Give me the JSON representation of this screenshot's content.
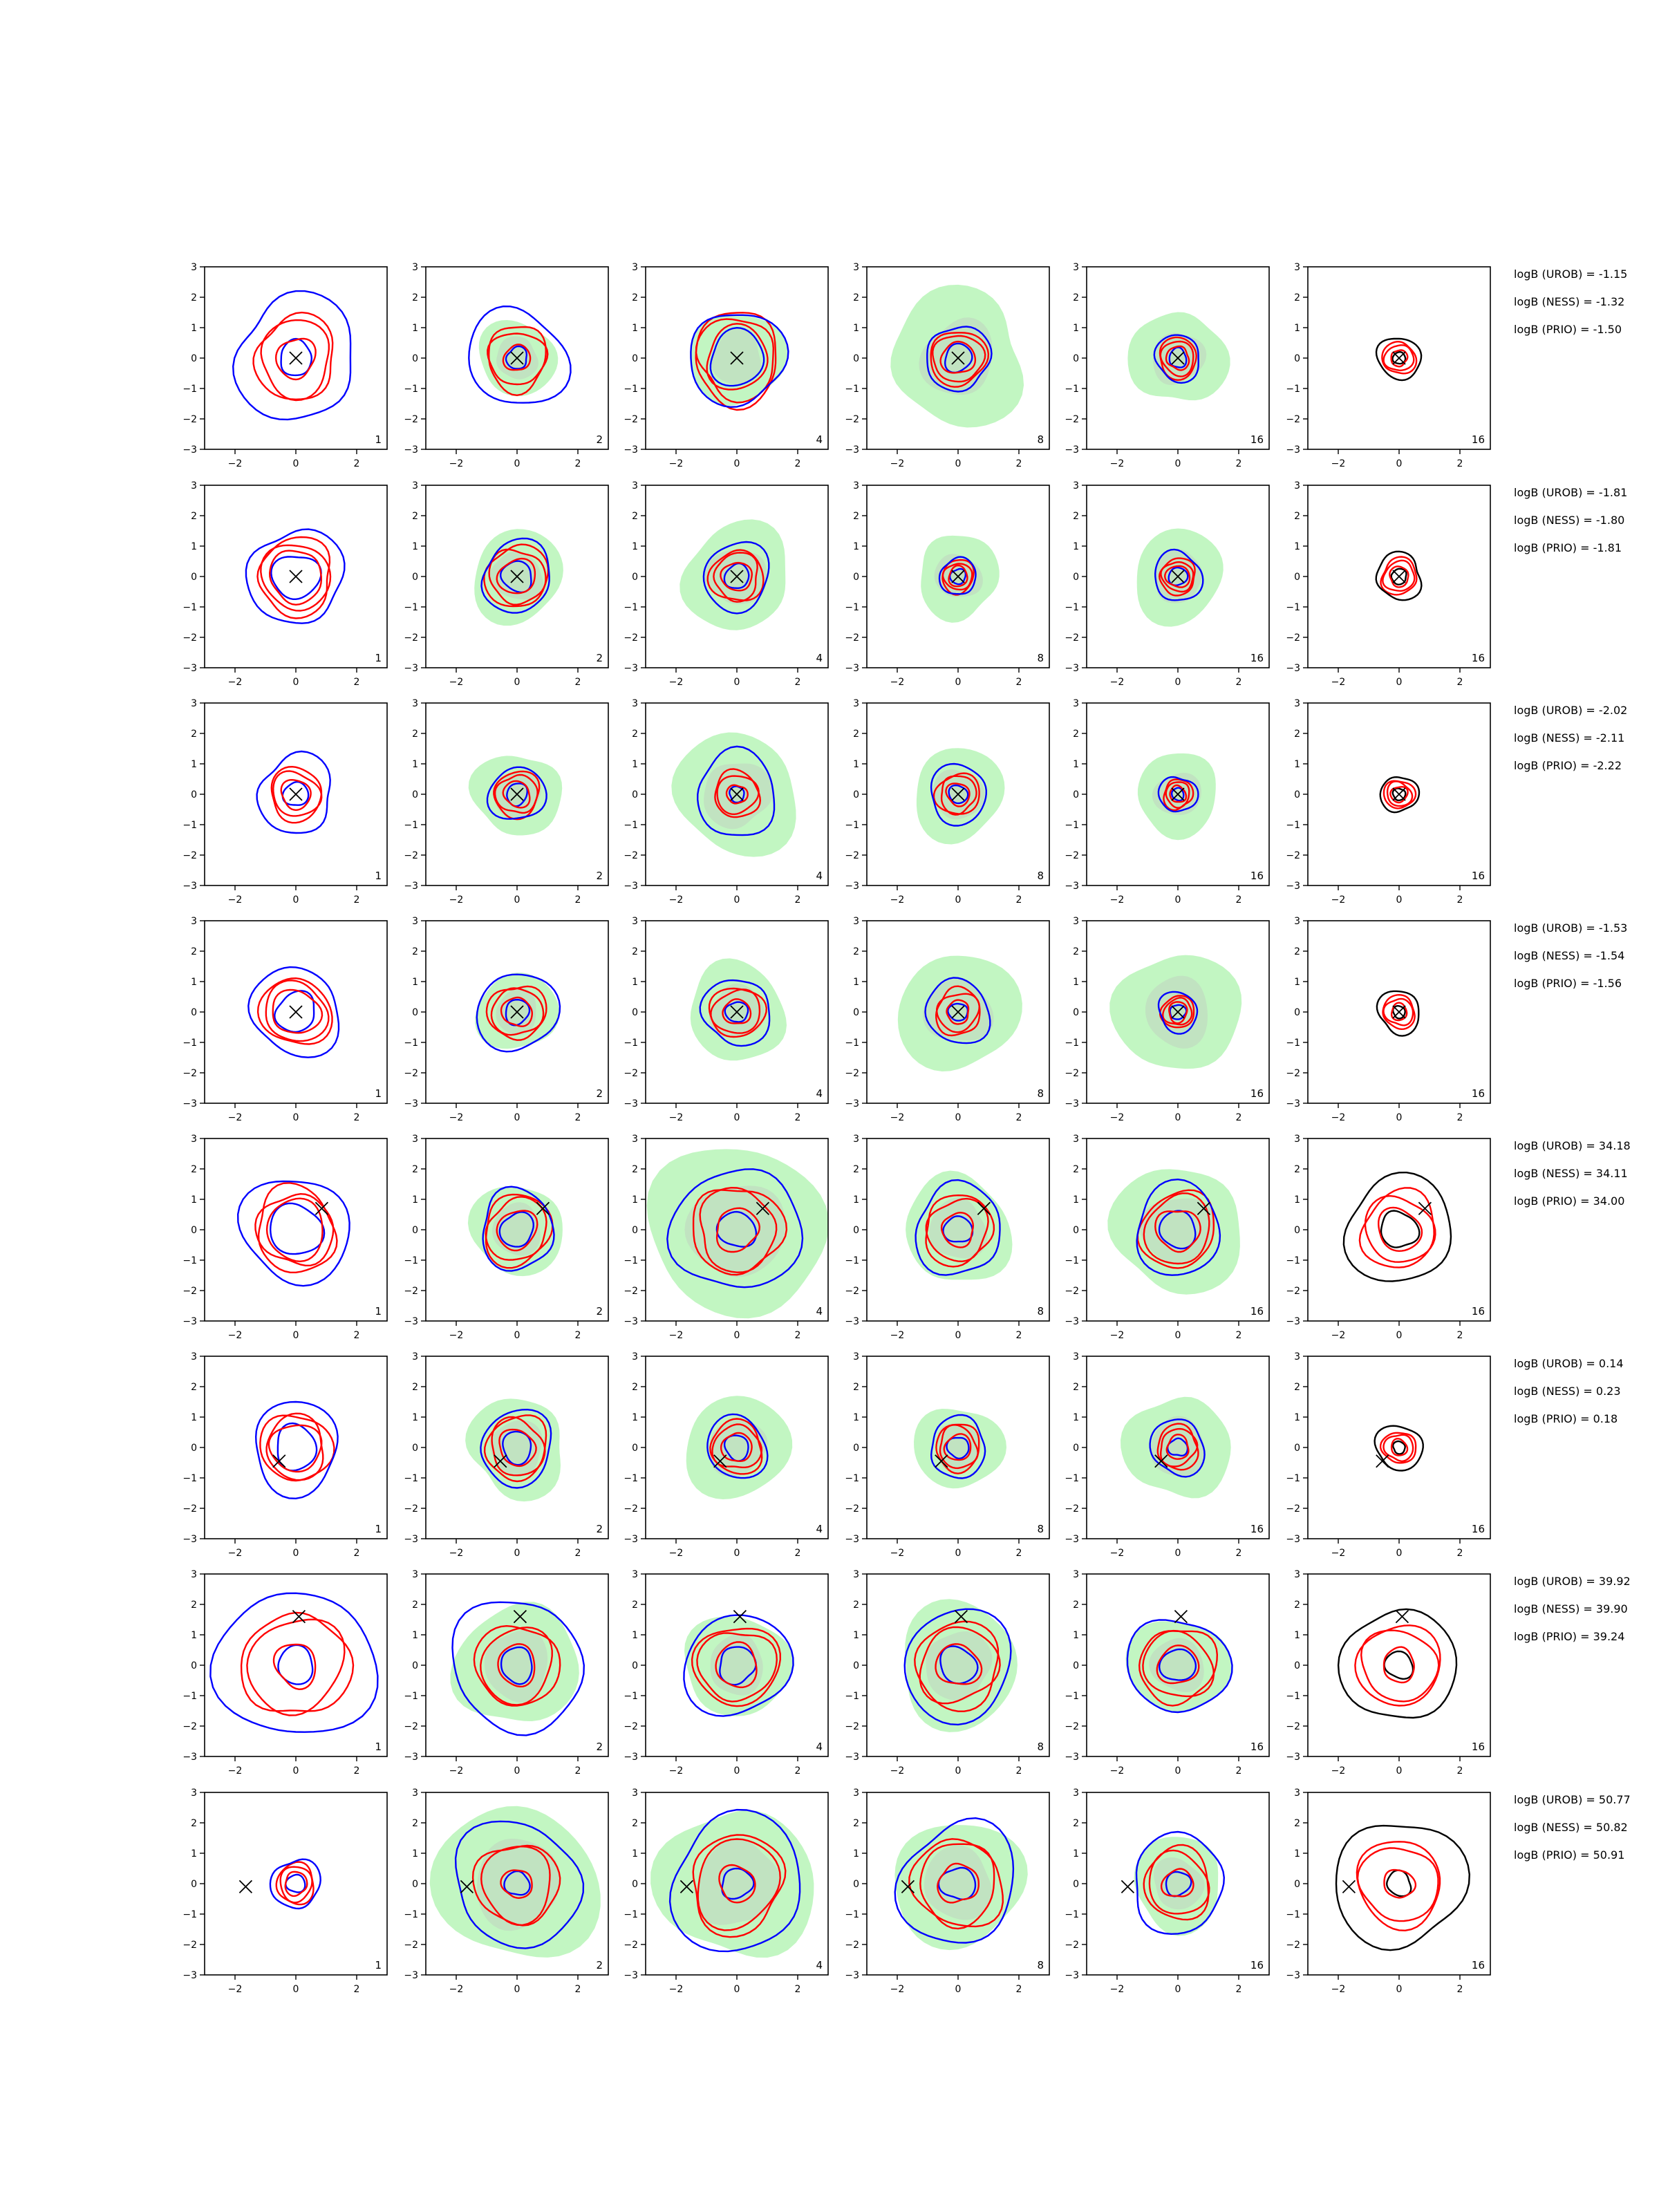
{
  "chart_data": {
    "type": "contour-grid",
    "rows": 8,
    "cols": 6,
    "xlim": [
      -3,
      3
    ],
    "ylim": [
      -3,
      3
    ],
    "xticks": [
      "−2",
      "0",
      "2"
    ],
    "yticks": [
      "3",
      "2",
      "1",
      "0",
      "−1",
      "−2",
      "−3"
    ],
    "col_labels": [
      "1",
      "2",
      "4",
      "8",
      "16",
      "16"
    ],
    "colors": {
      "urob": "#0000ff",
      "ness": "#ff0000",
      "prio": "#000000",
      "fill_green": "#90ee90",
      "fill_gray": "#c0c0c0",
      "marker": "#000000"
    },
    "true_points": [
      [
        0.0,
        0.0
      ],
      [
        0.0,
        0.0
      ],
      [
        0.0,
        0.0
      ],
      [
        0.0,
        0.0
      ],
      [
        0.85,
        0.7
      ],
      [
        -0.55,
        -0.45
      ],
      [
        0.1,
        1.6
      ],
      [
        -1.65,
        -0.1
      ]
    ],
    "annotations": [
      [
        "logB (UROB) = -1.15",
        "logB (NESS) = -1.32",
        "logB (PRIO) = -1.50"
      ],
      [
        "logB (UROB) = -1.81",
        "logB (NESS) = -1.80",
        "logB (PRIO) = -1.81"
      ],
      [
        "logB (UROB) = -2.02",
        "logB (NESS) = -2.11",
        "logB (PRIO) = -2.22"
      ],
      [
        "logB (UROB) = -1.53",
        "logB (NESS) = -1.54",
        "logB (PRIO) = -1.56"
      ],
      [
        "logB (UROB) = 34.18",
        "logB (NESS) = 34.11",
        "logB (PRIO) = 34.00"
      ],
      [
        "logB (UROB) = 0.14",
        "logB (NESS) = 0.23",
        "logB (PRIO) = 0.18"
      ],
      [
        "logB (UROB) = 39.92",
        "logB (NESS) = 39.90",
        "logB (PRIO) = 39.24"
      ],
      [
        "logB (UROB) = 50.77",
        "logB (NESS) = 50.82",
        "logB (PRIO) = 50.91"
      ]
    ],
    "contour_radii": [
      [
        [
          0.55,
          1.2,
          2.0
        ],
        [
          0.35,
          0.9,
          1.6
        ],
        [
          0.9,
          1.3,
          1.55
        ],
        [
          0.45,
          0.8,
          1.05
        ],
        [
          0.3,
          0.55,
          0.75
        ],
        [
          0.2,
          0.45,
          0.7
        ]
      ],
      [
        [
          0.75,
          1.1,
          1.55
        ],
        [
          0.5,
          0.9,
          1.15
        ],
        [
          0.4,
          0.75,
          1.1
        ],
        [
          0.25,
          0.45,
          0.6
        ],
        [
          0.3,
          0.5,
          0.8
        ],
        [
          0.25,
          0.5,
          0.75
        ]
      ],
      [
        [
          0.4,
          0.75,
          1.25
        ],
        [
          0.35,
          0.65,
          0.9
        ],
        [
          0.25,
          0.65,
          1.35
        ],
        [
          0.3,
          0.6,
          0.95
        ],
        [
          0.2,
          0.4,
          0.6
        ],
        [
          0.2,
          0.4,
          0.6
        ]
      ],
      [
        [
          0.65,
          1.0,
          1.45
        ],
        [
          0.4,
          0.8,
          1.3
        ],
        [
          0.35,
          0.75,
          1.1
        ],
        [
          0.3,
          0.65,
          1.05
        ],
        [
          0.25,
          0.45,
          0.65
        ],
        [
          0.2,
          0.45,
          0.7
        ]
      ],
      [
        [
          0.85,
          1.2,
          1.75
        ],
        [
          0.55,
          1.0,
          1.25
        ],
        [
          0.6,
          1.3,
          2.05
        ],
        [
          0.45,
          1.0,
          1.45
        ],
        [
          0.6,
          1.1,
          1.45
        ],
        [
          0.6,
          1.1,
          1.75
        ]
      ],
      [
        [
          0.7,
          1.0,
          1.45
        ],
        [
          0.5,
          0.9,
          1.2
        ],
        [
          0.4,
          0.75,
          1.0
        ],
        [
          0.35,
          0.65,
          0.95
        ],
        [
          0.3,
          0.6,
          0.9
        ],
        [
          0.2,
          0.45,
          0.75
        ]
      ],
      [
        [
          0.6,
          1.55,
          2.5
        ],
        [
          0.55,
          1.2,
          2.15
        ],
        [
          0.6,
          1.2,
          1.7
        ],
        [
          0.6,
          1.25,
          1.8
        ],
        [
          0.55,
          1.1,
          1.6
        ],
        [
          0.45,
          1.2,
          1.85
        ]
      ],
      [
        [
          0.3,
          0.55,
          0.8
        ],
        [
          0.4,
          1.2,
          2.05
        ],
        [
          0.5,
          1.4,
          2.2
        ],
        [
          0.55,
          1.3,
          1.95
        ],
        [
          0.4,
          1.0,
          1.55
        ],
        [
          0.4,
          1.25,
          2.1
        ]
      ]
    ],
    "green_radius": [
      [
        0,
        1.25,
        1.55,
        2.2,
        1.55,
        0
      ],
      [
        0,
        1.5,
        1.75,
        1.35,
        1.5,
        0
      ],
      [
        0,
        1.4,
        2.0,
        1.5,
        1.35,
        0
      ],
      [
        0,
        1.3,
        1.6,
        1.95,
        2.0,
        0
      ],
      [
        0,
        1.5,
        2.85,
        1.75,
        2.1,
        0
      ],
      [
        0,
        1.6,
        1.7,
        1.4,
        1.7,
        0
      ],
      [
        0,
        2.0,
        1.7,
        2.0,
        1.6,
        0
      ],
      [
        0,
        2.6,
        2.5,
        2.1,
        1.5,
        0
      ]
    ]
  }
}
